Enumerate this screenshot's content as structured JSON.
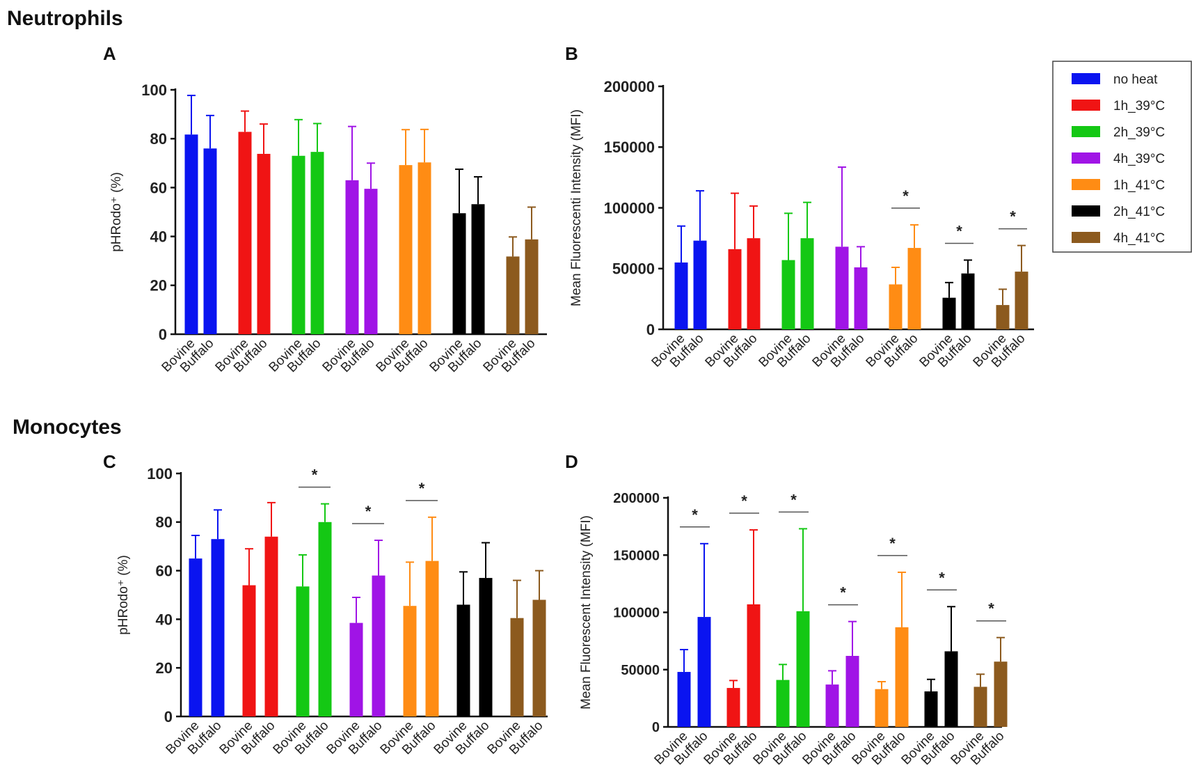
{
  "sections": {
    "top": "Neutrophils",
    "bottom": "Monocytes"
  },
  "chart_data": [
    {
      "id": "A",
      "type": "bar",
      "ylabel": "pHRodo⁺ (%)",
      "ylim": [
        0,
        100
      ],
      "yticks": [
        "0",
        "20",
        "40",
        "60",
        "80",
        "100"
      ],
      "species": [
        "Bovine",
        "Buffalo"
      ],
      "groups": [
        {
          "name": "no heat",
          "color": "#0a14f0",
          "values": [
            81.7,
            76
          ],
          "errors": [
            16,
            13.5
          ]
        },
        {
          "name": "1h_39°C",
          "color": "#f01414",
          "values": [
            82.8,
            73.8
          ],
          "errors": [
            8.5,
            12.2
          ]
        },
        {
          "name": "2h_39°C",
          "color": "#14c814",
          "values": [
            73,
            74.6
          ],
          "errors": [
            14.8,
            11.6
          ]
        },
        {
          "name": "4h_39°C",
          "color": "#a014e6",
          "values": [
            63,
            59.5
          ],
          "errors": [
            22,
            10.5
          ]
        },
        {
          "name": "1h_41°C",
          "color": "#ff8c14",
          "values": [
            69.2,
            70.3
          ],
          "errors": [
            14.5,
            13.5
          ]
        },
        {
          "name": "2h_41°C",
          "color": "#000000",
          "values": [
            49.5,
            53.2
          ],
          "errors": [
            18,
            11.2
          ]
        },
        {
          "name": "4h_41°C",
          "color": "#8c5a1e",
          "values": [
            31.8,
            38.8
          ],
          "errors": [
            8,
            13.2
          ]
        }
      ],
      "significance": []
    },
    {
      "id": "B",
      "type": "bar",
      "ylabel": "Mean  Fluorescenti  Intensity (MFI)",
      "ylim": [
        0,
        200000
      ],
      "yticks": [
        "0",
        "50000",
        "100000",
        "150000",
        "200000"
      ],
      "species": [
        "Bovine",
        "Buffalo"
      ],
      "groups": [
        {
          "name": "no heat",
          "color": "#0a14f0",
          "values": [
            55000,
            73000
          ],
          "errors": [
            30000,
            41000
          ]
        },
        {
          "name": "1h_39°C",
          "color": "#f01414",
          "values": [
            66000,
            75000
          ],
          "errors": [
            46000,
            26500
          ]
        },
        {
          "name": "2h_39°C",
          "color": "#14c814",
          "values": [
            57000,
            75000
          ],
          "errors": [
            38500,
            29500
          ]
        },
        {
          "name": "4h_39°C",
          "color": "#a014e6",
          "values": [
            68000,
            51000
          ],
          "errors": [
            65500,
            17000
          ]
        },
        {
          "name": "1h_41°C",
          "color": "#ff8c14",
          "values": [
            37000,
            67000
          ],
          "errors": [
            14000,
            19000
          ]
        },
        {
          "name": "2h_41°C",
          "color": "#000000",
          "values": [
            26000,
            46000
          ],
          "errors": [
            12500,
            11000
          ]
        },
        {
          "name": "4h_41°C",
          "color": "#8c5a1e",
          "values": [
            20000,
            47500
          ],
          "errors": [
            13000,
            21500
          ]
        }
      ],
      "significance": [
        4,
        5,
        6
      ],
      "sig_label": "*"
    },
    {
      "id": "C",
      "type": "bar",
      "ylabel": "pHRodo⁺ (%)",
      "ylim": [
        0,
        100
      ],
      "yticks": [
        "0",
        "20",
        "40",
        "60",
        "80",
        "100"
      ],
      "species": [
        "Bovine",
        "Buffalo"
      ],
      "groups": [
        {
          "name": "no heat",
          "color": "#0a14f0",
          "values": [
            65,
            73
          ],
          "errors": [
            9.5,
            12
          ]
        },
        {
          "name": "1h_39°C",
          "color": "#f01414",
          "values": [
            54,
            74
          ],
          "errors": [
            15,
            14
          ]
        },
        {
          "name": "2h_39°C",
          "color": "#14c814",
          "values": [
            53.5,
            80
          ],
          "errors": [
            13,
            7.5
          ]
        },
        {
          "name": "4h_39°C",
          "color": "#a014e6",
          "values": [
            38.5,
            58
          ],
          "errors": [
            10.5,
            14.5
          ]
        },
        {
          "name": "1h_41°C",
          "color": "#ff8c14",
          "values": [
            45.5,
            64
          ],
          "errors": [
            18,
            18
          ]
        },
        {
          "name": "2h_41°C",
          "color": "#000000",
          "values": [
            46,
            57
          ],
          "errors": [
            13.5,
            14.5
          ]
        },
        {
          "name": "4h_41°C",
          "color": "#8c5a1e",
          "values": [
            40.5,
            48
          ],
          "errors": [
            15.5,
            12
          ]
        }
      ],
      "significance": [
        2,
        3,
        4
      ],
      "sig_label": "*"
    },
    {
      "id": "D",
      "type": "bar",
      "ylabel": "Mean Fluorescent Intensity (MFI)",
      "ylim": [
        0,
        200000
      ],
      "yticks": [
        "0",
        "50000",
        "100000",
        "150000",
        "200000"
      ],
      "species": [
        "Bovine",
        "Buffalo"
      ],
      "groups": [
        {
          "name": "no heat",
          "color": "#0a14f0",
          "values": [
            48000,
            96000
          ],
          "errors": [
            19500,
            64000
          ]
        },
        {
          "name": "1h_39°C",
          "color": "#f01414",
          "values": [
            34000,
            107000
          ],
          "errors": [
            6500,
            65000
          ]
        },
        {
          "name": "2h_39°C",
          "color": "#14c814",
          "values": [
            41000,
            101000
          ],
          "errors": [
            13500,
            72000
          ]
        },
        {
          "name": "4h_39°C",
          "color": "#a014e6",
          "values": [
            37000,
            62000
          ],
          "errors": [
            12000,
            30000
          ]
        },
        {
          "name": "1h_41°C",
          "color": "#ff8c14",
          "values": [
            33000,
            87000
          ],
          "errors": [
            6500,
            48000
          ]
        },
        {
          "name": "2h_41°C",
          "color": "#000000",
          "values": [
            31000,
            66000
          ],
          "errors": [
            10500,
            39000
          ]
        },
        {
          "name": "4h_41°C",
          "color": "#8c5a1e",
          "values": [
            35000,
            57000
          ],
          "errors": [
            11000,
            21000
          ]
        }
      ],
      "significance": [
        0,
        1,
        2,
        3,
        4,
        5,
        6
      ],
      "sig_label": "*"
    }
  ],
  "legend": [
    {
      "label": "no heat",
      "color": "#0a14f0"
    },
    {
      "label": "1h_39°C",
      "color": "#f01414"
    },
    {
      "label": "2h_39°C",
      "color": "#14c814"
    },
    {
      "label": "4h_39°C",
      "color": "#a014e6"
    },
    {
      "label": "1h_41°C",
      "color": "#ff8c14"
    },
    {
      "label": "2h_41°C",
      "color": "#000000"
    },
    {
      "label": "4h_41°C",
      "color": "#8c5a1e"
    }
  ]
}
